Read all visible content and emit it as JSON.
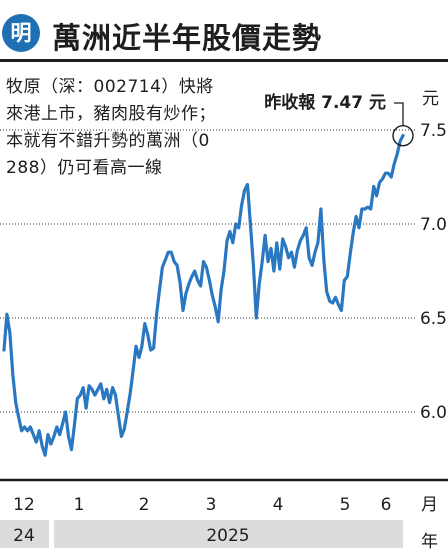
{
  "header": {
    "badge": "明",
    "title": "萬洲近半年股價走勢"
  },
  "note": "牧原（深：002714）快將來港上市，豬肉股有炒作；本就有不錯升勢的萬洲（0288）仍可看高一線",
  "chart_data": {
    "type": "line",
    "ylabel_unit": "元",
    "xlabel_unit": "月",
    "year_unit": "年",
    "yticks": [
      "6.0",
      "6.5",
      "7.0",
      "7.5"
    ],
    "ylim": [
      5.75,
      7.57
    ],
    "xticks": [
      "12",
      "1",
      "2",
      "3",
      "4",
      "5",
      "6"
    ],
    "years": [
      "24",
      "2025"
    ],
    "annotation": {
      "label": "昨收報 7.47 元",
      "value": 7.47
    },
    "colors": {
      "line": "#2a78c2",
      "grid": "#333333",
      "year_band": "#dcdcdc"
    },
    "series": [
      {
        "values": [
          6.33,
          6.52,
          6.42,
          6.2,
          6.05,
          5.97,
          5.9,
          5.92,
          5.9,
          5.92,
          5.88,
          5.84,
          5.9,
          5.82,
          5.77,
          5.88,
          5.83,
          5.87,
          5.92,
          5.88,
          5.94,
          6.0,
          5.87,
          5.8,
          5.93,
          6.07,
          6.09,
          6.13,
          6.02,
          6.14,
          6.12,
          6.09,
          6.12,
          6.15,
          6.07,
          6.12,
          6.05,
          6.13,
          6.09,
          5.98,
          5.87,
          5.91,
          6.0,
          6.1,
          6.22,
          6.35,
          6.29,
          6.35,
          6.47,
          6.41,
          6.33,
          6.34,
          6.52,
          6.65,
          6.77,
          6.81,
          6.85,
          6.85,
          6.8,
          6.78,
          6.69,
          6.54,
          6.63,
          6.68,
          6.72,
          6.75,
          6.7,
          6.67,
          6.8,
          6.77,
          6.7,
          6.62,
          6.56,
          6.48,
          6.65,
          6.75,
          6.91,
          6.96,
          6.9,
          7.0,
          6.98,
          7.1,
          7.18,
          7.21,
          7.0,
          6.78,
          6.5,
          6.68,
          6.8,
          6.94,
          6.8,
          6.87,
          6.75,
          6.9,
          6.76,
          6.92,
          6.88,
          6.82,
          6.85,
          6.77,
          6.86,
          6.91,
          6.94,
          6.98,
          6.82,
          6.78,
          6.85,
          6.9,
          7.08,
          6.81,
          6.64,
          6.59,
          6.58,
          6.61,
          6.57,
          6.54,
          6.7,
          6.72,
          6.84,
          6.95,
          7.04,
          6.98,
          7.08,
          7.08,
          7.09,
          7.08,
          7.2,
          7.15,
          7.22,
          7.24,
          7.27,
          7.27,
          7.25,
          7.32,
          7.37,
          7.44,
          7.47
        ]
      }
    ]
  }
}
